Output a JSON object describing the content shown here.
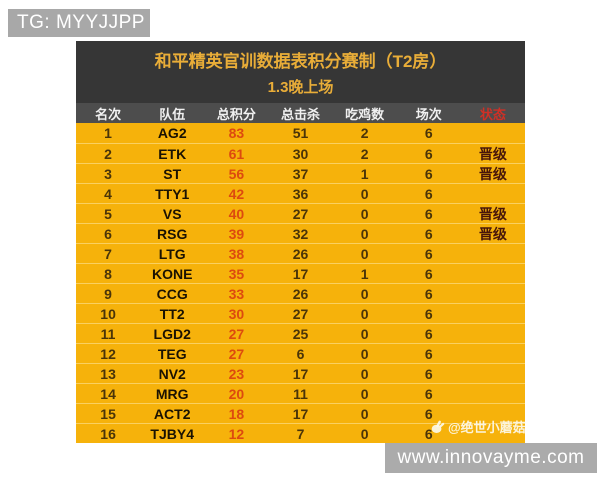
{
  "badge": {
    "text": "TG: MYYJJPP"
  },
  "table": {
    "title": "和平精英官训数据表积分赛制（T2房）",
    "subtitle": "1.3晚上场",
    "columns": [
      "名次",
      "队伍",
      "总积分",
      "总击杀",
      "吃鸡数",
      "场次",
      "状态"
    ],
    "rows": [
      {
        "rank": "1",
        "team": "AG2",
        "points": "83",
        "kills": "51",
        "chickens": "2",
        "matches": "6",
        "status": ""
      },
      {
        "rank": "2",
        "team": "ETK",
        "points": "61",
        "kills": "30",
        "chickens": "2",
        "matches": "6",
        "status": "晋级"
      },
      {
        "rank": "3",
        "team": "ST",
        "points": "56",
        "kills": "37",
        "chickens": "1",
        "matches": "6",
        "status": "晋级"
      },
      {
        "rank": "4",
        "team": "TTY1",
        "points": "42",
        "kills": "36",
        "chickens": "0",
        "matches": "6",
        "status": ""
      },
      {
        "rank": "5",
        "team": "VS",
        "points": "40",
        "kills": "27",
        "chickens": "0",
        "matches": "6",
        "status": "晋级"
      },
      {
        "rank": "6",
        "team": "RSG",
        "points": "39",
        "kills": "32",
        "chickens": "0",
        "matches": "6",
        "status": "晋级"
      },
      {
        "rank": "7",
        "team": "LTG",
        "points": "38",
        "kills": "26",
        "chickens": "0",
        "matches": "6",
        "status": ""
      },
      {
        "rank": "8",
        "team": "KONE",
        "points": "35",
        "kills": "17",
        "chickens": "1",
        "matches": "6",
        "status": ""
      },
      {
        "rank": "9",
        "team": "CCG",
        "points": "33",
        "kills": "26",
        "chickens": "0",
        "matches": "6",
        "status": ""
      },
      {
        "rank": "10",
        "team": "TT2",
        "points": "30",
        "kills": "27",
        "chickens": "0",
        "matches": "6",
        "status": ""
      },
      {
        "rank": "11",
        "team": "LGD2",
        "points": "27",
        "kills": "25",
        "chickens": "0",
        "matches": "6",
        "status": ""
      },
      {
        "rank": "12",
        "team": "TEG",
        "points": "27",
        "kills": "6",
        "chickens": "0",
        "matches": "6",
        "status": ""
      },
      {
        "rank": "13",
        "team": "NV2",
        "points": "23",
        "kills": "17",
        "chickens": "0",
        "matches": "6",
        "status": ""
      },
      {
        "rank": "14",
        "team": "MRG",
        "points": "20",
        "kills": "11",
        "chickens": "0",
        "matches": "6",
        "status": ""
      },
      {
        "rank": "15",
        "team": "ACT2",
        "points": "18",
        "kills": "17",
        "chickens": "0",
        "matches": "6",
        "status": ""
      },
      {
        "rank": "16",
        "team": "TJBY4",
        "points": "12",
        "kills": "7",
        "chickens": "0",
        "matches": "6",
        "status": ""
      }
    ]
  },
  "watermark": {
    "text": "@绝世小蘑菇"
  },
  "footer": {
    "url": "www.innovayme.com"
  },
  "colors": {
    "row_yellow": "#f6b20b",
    "points_red": "#dd4a0f",
    "status_header_red": "#d03026",
    "title_gold": "#e9ad38",
    "title_block_dark": "#363636",
    "column_header_gray": "#4d4d4d",
    "badge_gray": "#a8a8a8",
    "footer_gray": "#ababab"
  }
}
